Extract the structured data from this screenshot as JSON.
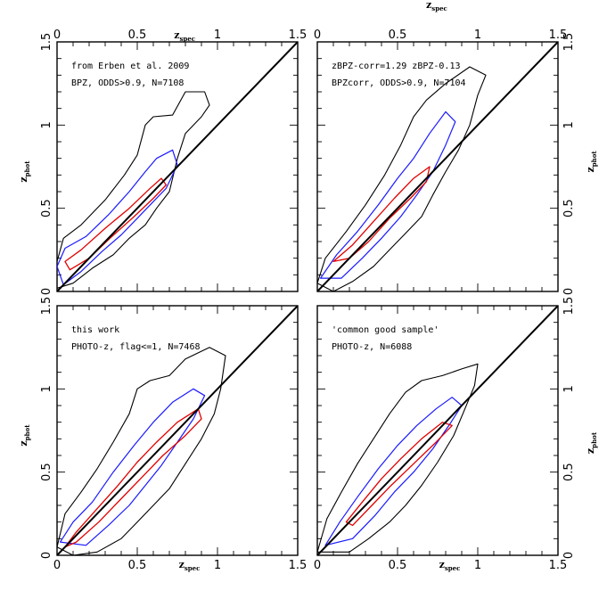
{
  "figure": {
    "top_axis_label_main": "z",
    "top_axis_label_sub": "spec",
    "x_ticks": [
      "0",
      "0.5",
      "1",
      "1.5"
    ],
    "y_ticks": [
      "0",
      "0.5",
      "1",
      "1.5"
    ]
  },
  "colors": {
    "outer": "#000000",
    "mid": "#1a1aff",
    "inner": "#e00000",
    "diagonal": "#000000"
  },
  "chart_data": [
    {
      "type": "contour",
      "panel": "top-left",
      "annotation_lines": [
        "from Erben et al. 2009",
        "BPZ, ODDS>0.9, N=7108"
      ],
      "xlabel": "zspec",
      "ylabel": "zphot",
      "xlim": [
        0,
        1.5
      ],
      "ylim": [
        0,
        1.5
      ],
      "reference_line": [
        [
          0,
          0
        ],
        [
          1.5,
          1.5
        ]
      ],
      "contours": {
        "outer": [
          [
            0.0,
            0.18
          ],
          [
            0.04,
            0.32
          ],
          [
            0.15,
            0.4
          ],
          [
            0.3,
            0.55
          ],
          [
            0.42,
            0.7
          ],
          [
            0.5,
            0.82
          ],
          [
            0.55,
            1.0
          ],
          [
            0.6,
            1.05
          ],
          [
            0.72,
            1.06
          ],
          [
            0.8,
            1.2
          ],
          [
            0.92,
            1.2
          ],
          [
            0.95,
            1.12
          ],
          [
            0.9,
            1.05
          ],
          [
            0.8,
            0.95
          ],
          [
            0.75,
            0.8
          ],
          [
            0.7,
            0.6
          ],
          [
            0.62,
            0.5
          ],
          [
            0.55,
            0.4
          ],
          [
            0.45,
            0.32
          ],
          [
            0.35,
            0.22
          ],
          [
            0.22,
            0.14
          ],
          [
            0.1,
            0.05
          ],
          [
            0.0,
            0.02
          ]
        ],
        "mid": [
          [
            0.0,
            0.15
          ],
          [
            0.05,
            0.26
          ],
          [
            0.18,
            0.33
          ],
          [
            0.32,
            0.46
          ],
          [
            0.45,
            0.6
          ],
          [
            0.55,
            0.72
          ],
          [
            0.62,
            0.8
          ],
          [
            0.72,
            0.85
          ],
          [
            0.75,
            0.76
          ],
          [
            0.68,
            0.62
          ],
          [
            0.6,
            0.54
          ],
          [
            0.5,
            0.44
          ],
          [
            0.4,
            0.34
          ],
          [
            0.28,
            0.24
          ],
          [
            0.15,
            0.12
          ],
          [
            0.04,
            0.04
          ]
        ],
        "inner": [
          [
            0.05,
            0.18
          ],
          [
            0.15,
            0.25
          ],
          [
            0.3,
            0.38
          ],
          [
            0.45,
            0.5
          ],
          [
            0.58,
            0.62
          ],
          [
            0.65,
            0.68
          ],
          [
            0.68,
            0.64
          ],
          [
            0.6,
            0.56
          ],
          [
            0.48,
            0.45
          ],
          [
            0.33,
            0.32
          ],
          [
            0.2,
            0.2
          ],
          [
            0.08,
            0.13
          ]
        ]
      }
    },
    {
      "type": "contour",
      "panel": "top-right",
      "annotation_lines": [
        "zBPZ-corr=1.29 zBPZ-0.13",
        "BPZcorr, ODDS>0.9, N=7104"
      ],
      "xlabel": "zspec",
      "ylabel": "zphot",
      "xlim": [
        0,
        1.5
      ],
      "ylim": [
        0,
        1.5
      ],
      "reference_line": [
        [
          0,
          0
        ],
        [
          1.5,
          1.5
        ]
      ],
      "contours": {
        "outer": [
          [
            0.0,
            0.05
          ],
          [
            0.05,
            0.2
          ],
          [
            0.18,
            0.36
          ],
          [
            0.3,
            0.52
          ],
          [
            0.42,
            0.7
          ],
          [
            0.52,
            0.88
          ],
          [
            0.6,
            1.05
          ],
          [
            0.68,
            1.15
          ],
          [
            0.8,
            1.25
          ],
          [
            0.95,
            1.35
          ],
          [
            1.05,
            1.3
          ],
          [
            1.0,
            1.18
          ],
          [
            0.95,
            1.0
          ],
          [
            0.88,
            0.85
          ],
          [
            0.8,
            0.72
          ],
          [
            0.72,
            0.58
          ],
          [
            0.65,
            0.45
          ],
          [
            0.55,
            0.35
          ],
          [
            0.45,
            0.25
          ],
          [
            0.35,
            0.15
          ],
          [
            0.22,
            0.06
          ],
          [
            0.1,
            0.0
          ]
        ],
        "mid": [
          [
            0.02,
            0.08
          ],
          [
            0.12,
            0.22
          ],
          [
            0.25,
            0.36
          ],
          [
            0.38,
            0.52
          ],
          [
            0.5,
            0.68
          ],
          [
            0.6,
            0.8
          ],
          [
            0.7,
            0.95
          ],
          [
            0.8,
            1.08
          ],
          [
            0.86,
            1.02
          ],
          [
            0.8,
            0.88
          ],
          [
            0.72,
            0.72
          ],
          [
            0.62,
            0.58
          ],
          [
            0.52,
            0.45
          ],
          [
            0.4,
            0.32
          ],
          [
            0.28,
            0.2
          ],
          [
            0.15,
            0.08
          ]
        ],
        "inner": [
          [
            0.1,
            0.18
          ],
          [
            0.22,
            0.28
          ],
          [
            0.35,
            0.42
          ],
          [
            0.48,
            0.56
          ],
          [
            0.6,
            0.68
          ],
          [
            0.7,
            0.75
          ],
          [
            0.68,
            0.66
          ],
          [
            0.58,
            0.56
          ],
          [
            0.45,
            0.44
          ],
          [
            0.32,
            0.3
          ],
          [
            0.2,
            0.2
          ]
        ]
      }
    },
    {
      "type": "contour",
      "panel": "bottom-left",
      "annotation_lines": [
        "this work",
        "PHOTO-z, flag<=1, N=7468"
      ],
      "xlabel": "zspec",
      "ylabel": "zphot",
      "xlim": [
        0,
        1.5
      ],
      "ylim": [
        0,
        1.5
      ],
      "reference_line": [
        [
          0,
          0
        ],
        [
          1.5,
          1.5
        ]
      ],
      "contours": {
        "outer": [
          [
            0.0,
            0.05
          ],
          [
            0.05,
            0.25
          ],
          [
            0.15,
            0.38
          ],
          [
            0.25,
            0.52
          ],
          [
            0.35,
            0.68
          ],
          [
            0.45,
            0.85
          ],
          [
            0.5,
            1.0
          ],
          [
            0.58,
            1.05
          ],
          [
            0.7,
            1.08
          ],
          [
            0.8,
            1.18
          ],
          [
            0.95,
            1.25
          ],
          [
            1.05,
            1.2
          ],
          [
            1.02,
            1.0
          ],
          [
            0.98,
            0.85
          ],
          [
            0.9,
            0.7
          ],
          [
            0.8,
            0.55
          ],
          [
            0.7,
            0.4
          ],
          [
            0.6,
            0.3
          ],
          [
            0.5,
            0.2
          ],
          [
            0.4,
            0.1
          ],
          [
            0.25,
            0.02
          ],
          [
            0.1,
            0.0
          ]
        ],
        "mid": [
          [
            0.02,
            0.08
          ],
          [
            0.1,
            0.2
          ],
          [
            0.22,
            0.32
          ],
          [
            0.35,
            0.5
          ],
          [
            0.48,
            0.66
          ],
          [
            0.6,
            0.8
          ],
          [
            0.72,
            0.92
          ],
          [
            0.85,
            1.0
          ],
          [
            0.92,
            0.96
          ],
          [
            0.85,
            0.82
          ],
          [
            0.75,
            0.68
          ],
          [
            0.65,
            0.54
          ],
          [
            0.55,
            0.42
          ],
          [
            0.45,
            0.3
          ],
          [
            0.32,
            0.18
          ],
          [
            0.18,
            0.06
          ]
        ],
        "inner": [
          [
            0.05,
            0.05
          ],
          [
            0.12,
            0.14
          ],
          [
            0.25,
            0.28
          ],
          [
            0.38,
            0.42
          ],
          [
            0.5,
            0.56
          ],
          [
            0.62,
            0.68
          ],
          [
            0.75,
            0.8
          ],
          [
            0.88,
            0.88
          ],
          [
            0.9,
            0.82
          ],
          [
            0.8,
            0.72
          ],
          [
            0.66,
            0.6
          ],
          [
            0.54,
            0.48
          ],
          [
            0.4,
            0.34
          ],
          [
            0.26,
            0.2
          ],
          [
            0.12,
            0.08
          ]
        ]
      }
    },
    {
      "type": "contour",
      "panel": "bottom-right",
      "annotation_lines": [
        "'common good sample'",
        "PHOTO-z, N=6088"
      ],
      "xlabel": "zspec",
      "ylabel": "zphot",
      "xlim": [
        0,
        1.5
      ],
      "ylim": [
        0,
        1.5
      ],
      "reference_line": [
        [
          0,
          0
        ],
        [
          1.5,
          1.5
        ]
      ],
      "contours": {
        "outer": [
          [
            0.0,
            0.02
          ],
          [
            0.06,
            0.22
          ],
          [
            0.15,
            0.38
          ],
          [
            0.25,
            0.55
          ],
          [
            0.35,
            0.7
          ],
          [
            0.45,
            0.85
          ],
          [
            0.55,
            0.98
          ],
          [
            0.65,
            1.05
          ],
          [
            0.78,
            1.08
          ],
          [
            0.9,
            1.12
          ],
          [
            1.0,
            1.15
          ],
          [
            0.98,
            1.02
          ],
          [
            0.92,
            0.88
          ],
          [
            0.85,
            0.72
          ],
          [
            0.75,
            0.56
          ],
          [
            0.65,
            0.42
          ],
          [
            0.55,
            0.3
          ],
          [
            0.45,
            0.2
          ],
          [
            0.32,
            0.1
          ],
          [
            0.2,
            0.02
          ]
        ],
        "mid": [
          [
            0.05,
            0.06
          ],
          [
            0.14,
            0.2
          ],
          [
            0.25,
            0.35
          ],
          [
            0.38,
            0.52
          ],
          [
            0.5,
            0.66
          ],
          [
            0.62,
            0.78
          ],
          [
            0.74,
            0.88
          ],
          [
            0.84,
            0.95
          ],
          [
            0.9,
            0.9
          ],
          [
            0.82,
            0.78
          ],
          [
            0.72,
            0.64
          ],
          [
            0.6,
            0.5
          ],
          [
            0.48,
            0.38
          ],
          [
            0.36,
            0.24
          ],
          [
            0.22,
            0.1
          ]
        ],
        "inner": [
          [
            0.18,
            0.2
          ],
          [
            0.28,
            0.32
          ],
          [
            0.4,
            0.46
          ],
          [
            0.52,
            0.58
          ],
          [
            0.65,
            0.7
          ],
          [
            0.78,
            0.8
          ],
          [
            0.84,
            0.78
          ],
          [
            0.74,
            0.68
          ],
          [
            0.6,
            0.55
          ],
          [
            0.46,
            0.42
          ],
          [
            0.34,
            0.3
          ],
          [
            0.22,
            0.18
          ]
        ]
      }
    }
  ]
}
